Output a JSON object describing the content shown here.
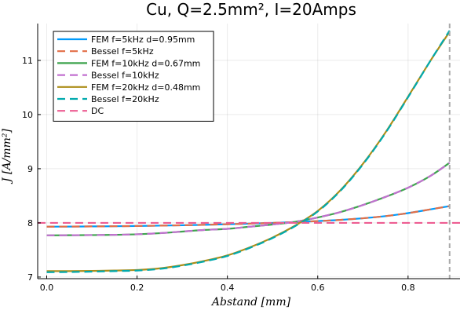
{
  "chart_data": {
    "type": "line",
    "title": "Cu, Q=2.5mm², I=20Amps",
    "xlabel": "Abstand  [mm]",
    "ylabel": "J  [A/mm²]",
    "xlim": [
      -0.02,
      0.915
    ],
    "ylim": [
      6.97,
      11.68
    ],
    "xticks": [
      0.0,
      0.2,
      0.4,
      0.6,
      0.8
    ],
    "xtick_labels": [
      "0.0",
      "0.2",
      "0.4",
      "0.6",
      "0.8"
    ],
    "yticks": [
      7,
      8,
      9,
      10,
      11
    ],
    "ytick_labels": [
      "7",
      "8",
      "9",
      "10",
      "11"
    ],
    "grid": true,
    "legend_position": "top-left",
    "vline_x": 0.892,
    "vline_color": "#aaaaaa",
    "x": [
      0.0,
      0.05,
      0.1,
      0.15,
      0.2,
      0.25,
      0.3,
      0.35,
      0.4,
      0.45,
      0.5,
      0.55,
      0.6,
      0.65,
      0.7,
      0.75,
      0.8,
      0.85,
      0.892
    ],
    "series": [
      {
        "name": "FEM f=5kHz  d=0.95mm",
        "color": "#009AFA",
        "dash": "solid",
        "values": [
          7.93,
          7.932,
          7.935,
          7.938,
          7.943,
          7.949,
          7.956,
          7.965,
          7.975,
          7.986,
          8.0,
          8.015,
          8.033,
          8.055,
          8.085,
          8.125,
          8.18,
          8.25,
          8.31
        ]
      },
      {
        "name": "Bessel f=5kHz",
        "color": "#E36F47",
        "dash": "dashed",
        "values": [
          7.93,
          7.932,
          7.935,
          7.938,
          7.943,
          7.949,
          7.956,
          7.965,
          7.975,
          7.986,
          8.0,
          8.015,
          8.033,
          8.055,
          8.085,
          8.125,
          8.18,
          8.25,
          8.31
        ]
      },
      {
        "name": "FEM f=10kHz  d=0.67mm",
        "color": "#3EA44E",
        "dash": "solid",
        "values": [
          7.77,
          7.772,
          7.775,
          7.78,
          7.79,
          7.81,
          7.84,
          7.87,
          7.89,
          7.93,
          7.97,
          8.02,
          8.1,
          8.2,
          8.33,
          8.48,
          8.65,
          8.87,
          9.11
        ]
      },
      {
        "name": "Bessel f=10kHz",
        "color": "#C270D0",
        "dash": "dashed",
        "values": [
          7.77,
          7.772,
          7.775,
          7.78,
          7.79,
          7.81,
          7.84,
          7.87,
          7.89,
          7.93,
          7.97,
          8.02,
          8.1,
          8.2,
          8.33,
          8.48,
          8.65,
          8.87,
          9.11
        ]
      },
      {
        "name": "FEM f=20kHz  d=0.48mm",
        "color": "#AC8D18",
        "dash": "solid",
        "values": [
          7.11,
          7.11,
          7.113,
          7.12,
          7.13,
          7.16,
          7.22,
          7.3,
          7.4,
          7.55,
          7.73,
          7.95,
          8.22,
          8.6,
          9.09,
          9.67,
          10.33,
          11.0,
          11.53
        ]
      },
      {
        "name": "Bessel f=20kHz",
        "color": "#00A9AD",
        "dash": "dashed",
        "values": [
          7.09,
          7.093,
          7.1,
          7.11,
          7.12,
          7.15,
          7.21,
          7.29,
          7.39,
          7.54,
          7.72,
          7.94,
          8.21,
          8.59,
          9.08,
          9.66,
          10.32,
          11.0,
          11.55
        ]
      },
      {
        "name": "DC",
        "color": "#ED5D92",
        "dash": "dashed",
        "values": [
          8.0,
          8.0,
          8.0,
          8.0,
          8.0,
          8.0,
          8.0,
          8.0,
          8.0,
          8.0,
          8.0,
          8.0,
          8.0,
          8.0,
          8.0,
          8.0,
          8.0,
          8.0,
          8.0
        ],
        "extends_full_width": true
      }
    ]
  }
}
